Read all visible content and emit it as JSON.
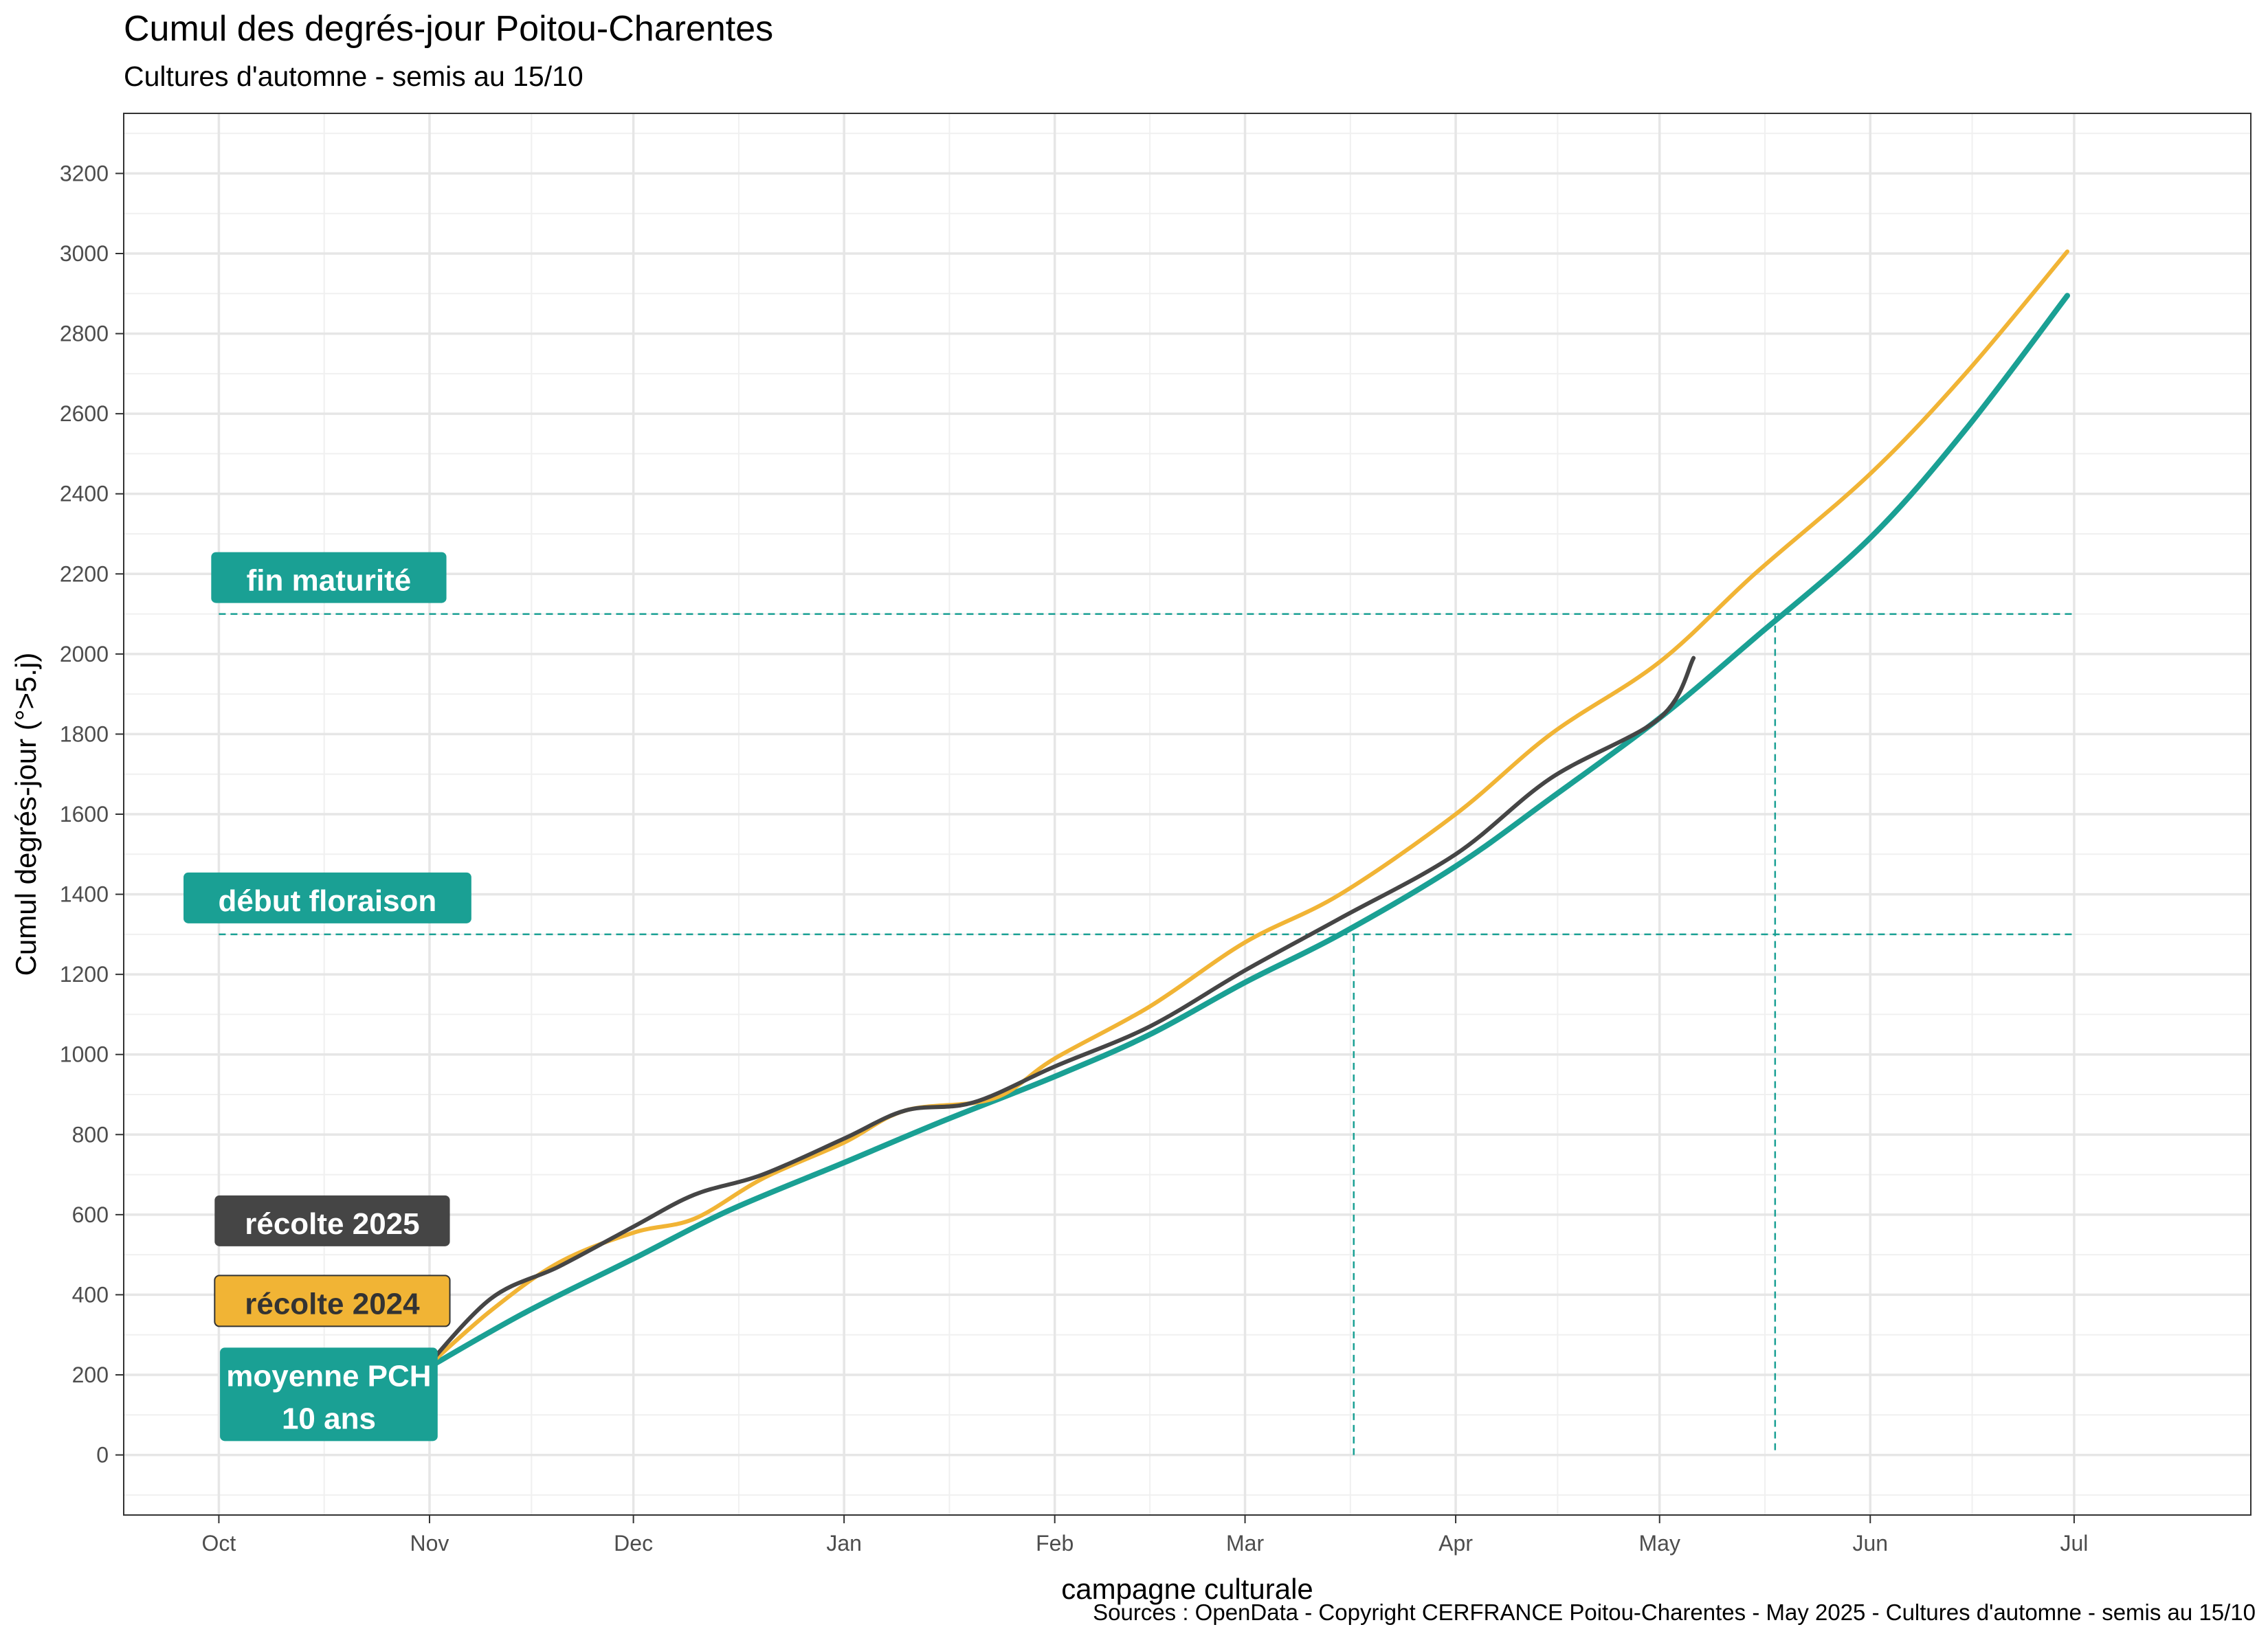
{
  "chart_data": {
    "type": "line",
    "title": "Cumul des degrés-jour Poitou-Charentes",
    "subtitle": "Cultures d'automne - semis au 15/10",
    "caption": "Sources : OpenData - Copyright CERFRANCE Poitou-Charentes - May 2025 - Cultures d'automne - semis au 15/10",
    "xlabel": "campagne culturale",
    "ylabel": "Cumul degrés-jour (°>5.j)",
    "x_ticks": [
      "Oct",
      "Nov",
      "Dec",
      "Jan",
      "Feb",
      "Mar",
      "Apr",
      "May",
      "Jun",
      "Jul"
    ],
    "y_ticks": [
      0,
      200,
      400,
      600,
      800,
      1000,
      1200,
      1400,
      1600,
      1800,
      2000,
      2200,
      2400,
      2600,
      2800,
      3000,
      3200
    ],
    "xlim": [
      "2024-09-17",
      "2025-07-27"
    ],
    "ylim": [
      -150,
      3350
    ],
    "grid": true,
    "series": [
      {
        "name": "moyenne PCH 10 ans",
        "color": "#1aa094",
        "points": [
          [
            "2024-10-31",
            210
          ],
          [
            "2024-11-15",
            355
          ],
          [
            "2024-12-01",
            490
          ],
          [
            "2024-12-15",
            610
          ],
          [
            "2025-01-01",
            730
          ],
          [
            "2025-01-15",
            830
          ],
          [
            "2025-02-01",
            945
          ],
          [
            "2025-02-15",
            1050
          ],
          [
            "2025-03-01",
            1180
          ],
          [
            "2025-03-15",
            1300
          ],
          [
            "2025-04-01",
            1470
          ],
          [
            "2025-04-15",
            1640
          ],
          [
            "2025-05-01",
            1840
          ],
          [
            "2025-05-15",
            2040
          ],
          [
            "2025-06-01",
            2290
          ],
          [
            "2025-06-15",
            2560
          ],
          [
            "2025-06-30",
            2895
          ]
        ]
      },
      {
        "name": "récolte 2024",
        "color": "#f1b435",
        "points": [
          [
            "2024-10-31",
            210
          ],
          [
            "2024-11-10",
            360
          ],
          [
            "2024-11-20",
            480
          ],
          [
            "2024-12-01",
            555
          ],
          [
            "2024-12-10",
            590
          ],
          [
            "2024-12-20",
            690
          ],
          [
            "2025-01-01",
            780
          ],
          [
            "2025-01-10",
            860
          ],
          [
            "2025-01-23",
            890
          ],
          [
            "2025-02-01",
            990
          ],
          [
            "2025-02-15",
            1120
          ],
          [
            "2025-03-01",
            1280
          ],
          [
            "2025-03-15",
            1400
          ],
          [
            "2025-04-01",
            1600
          ],
          [
            "2025-04-15",
            1800
          ],
          [
            "2025-05-01",
            1980
          ],
          [
            "2025-05-15",
            2200
          ],
          [
            "2025-06-01",
            2450
          ],
          [
            "2025-06-15",
            2700
          ],
          [
            "2025-06-30",
            3005
          ]
        ]
      },
      {
        "name": "récolte 2025",
        "color": "#454545",
        "points": [
          [
            "2024-10-31",
            210
          ],
          [
            "2024-11-10",
            390
          ],
          [
            "2024-11-20",
            470
          ],
          [
            "2024-12-01",
            570
          ],
          [
            "2024-12-10",
            650
          ],
          [
            "2024-12-20",
            700
          ],
          [
            "2025-01-01",
            790
          ],
          [
            "2025-01-10",
            860
          ],
          [
            "2025-01-20",
            880
          ],
          [
            "2025-02-01",
            970
          ],
          [
            "2025-02-15",
            1070
          ],
          [
            "2025-03-01",
            1210
          ],
          [
            "2025-03-15",
            1340
          ],
          [
            "2025-04-01",
            1500
          ],
          [
            "2025-04-15",
            1690
          ],
          [
            "2025-05-01",
            1840
          ],
          [
            "2025-05-06",
            1990
          ]
        ]
      }
    ],
    "thresholds": [
      {
        "label": "fin maturité",
        "value": 2100,
        "color": "#1aa094",
        "date": "2025-05-18"
      },
      {
        "label": "début floraison",
        "value": 1300,
        "color": "#1aa094",
        "date": "2025-03-17"
      }
    ],
    "legend_labels": [
      {
        "text": "récolte 2025",
        "color": "#454545",
        "text_color": "#ffffff"
      },
      {
        "text": "récolte 2024",
        "color": "#f1b435",
        "text_color": "#333333"
      },
      {
        "text": "moyenne PCH\n10 ans",
        "color": "#1aa094",
        "text_color": "#ffffff"
      }
    ]
  }
}
